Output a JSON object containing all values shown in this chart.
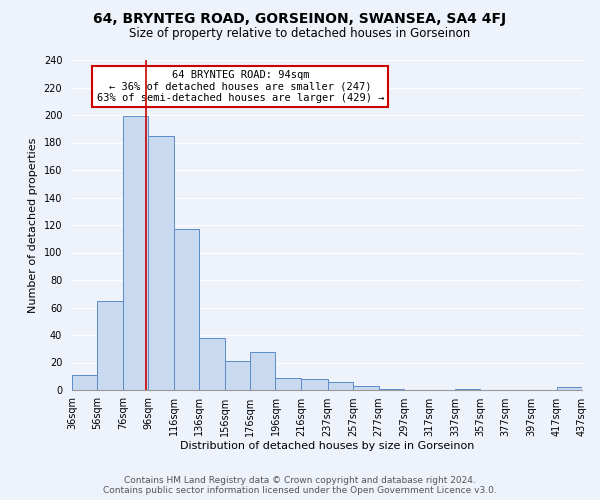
{
  "title": "64, BRYNTEG ROAD, GORSEINON, SWANSEA, SA4 4FJ",
  "subtitle": "Size of property relative to detached houses in Gorseinon",
  "xlabel": "Distribution of detached houses by size in Gorseinon",
  "ylabel": "Number of detached properties",
  "bar_edges": [
    36,
    56,
    76,
    96,
    116,
    136,
    156,
    176,
    196,
    216,
    237,
    257,
    277,
    297,
    317,
    337,
    357,
    377,
    397,
    417,
    437
  ],
  "bar_heights": [
    11,
    65,
    199,
    185,
    117,
    38,
    21,
    28,
    9,
    8,
    6,
    3,
    1,
    0,
    0,
    1,
    0,
    0,
    0,
    2
  ],
  "bar_color": "#c9d9f0",
  "bar_edgecolor": "#5b8cc8",
  "property_line_x": 94,
  "property_line_color": "#cc0000",
  "annotation_line1": "64 BRYNTEG ROAD: 94sqm",
  "annotation_line2": "← 36% of detached houses are smaller (247)",
  "annotation_line3": "63% of semi-detached houses are larger (429) →",
  "annotation_box_edgecolor": "#cc0000",
  "annotation_box_facecolor": "#ffffff",
  "ylim": [
    0,
    240
  ],
  "yticks": [
    0,
    20,
    40,
    60,
    80,
    100,
    120,
    140,
    160,
    180,
    200,
    220,
    240
  ],
  "tick_labels": [
    "36sqm",
    "56sqm",
    "76sqm",
    "96sqm",
    "116sqm",
    "136sqm",
    "156sqm",
    "176sqm",
    "196sqm",
    "216sqm",
    "237sqm",
    "257sqm",
    "277sqm",
    "297sqm",
    "317sqm",
    "337sqm",
    "357sqm",
    "377sqm",
    "397sqm",
    "417sqm",
    "437sqm"
  ],
  "footer_line1": "Contains HM Land Registry data © Crown copyright and database right 2024.",
  "footer_line2": "Contains public sector information licensed under the Open Government Licence v3.0.",
  "bg_color": "#eef2fb",
  "grid_color": "#ffffff",
  "title_fontsize": 10,
  "subtitle_fontsize": 8.5,
  "axis_label_fontsize": 8,
  "tick_fontsize": 7,
  "annotation_fontsize": 7.5,
  "footer_fontsize": 6.5
}
